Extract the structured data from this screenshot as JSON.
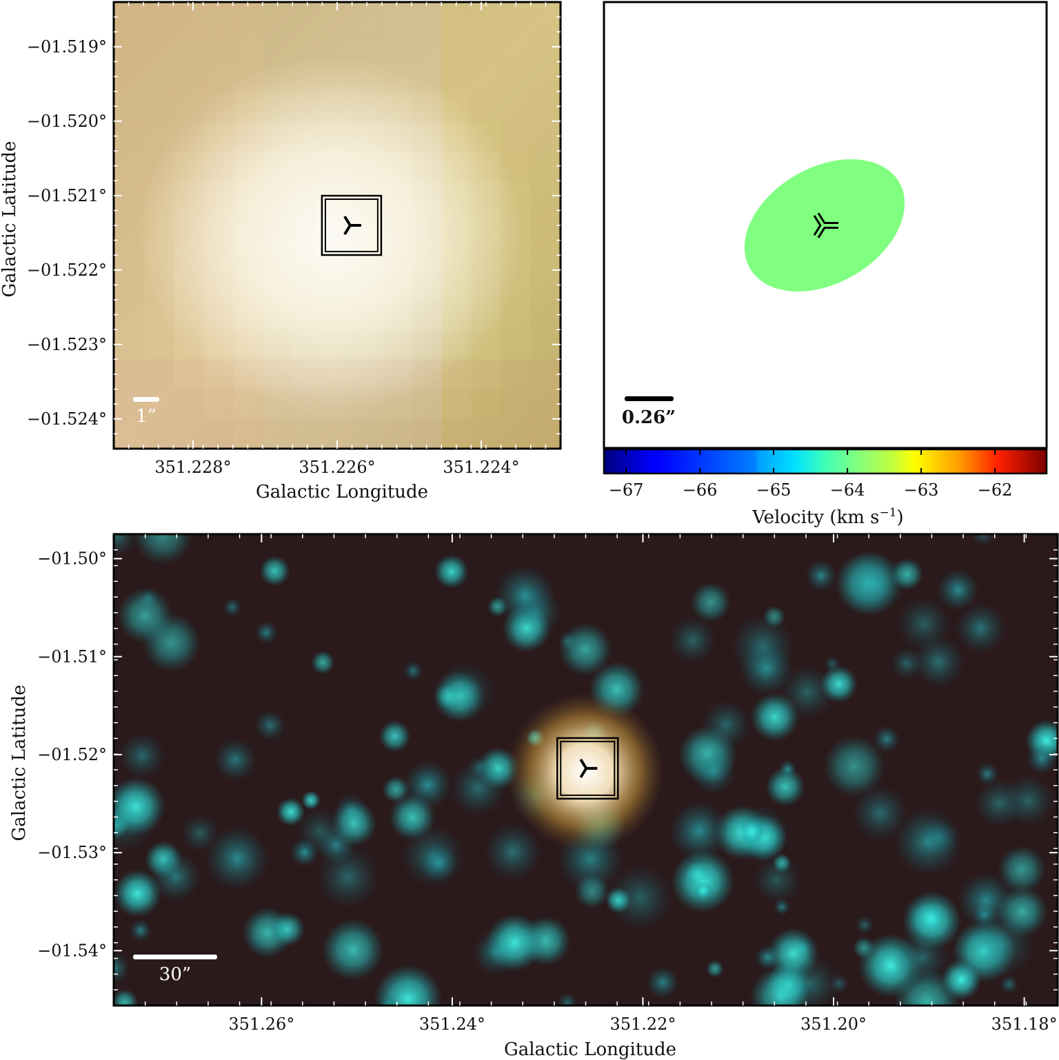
{
  "chart_data": [
    {
      "type": "heatmap",
      "panel": "top-left",
      "description_kind": "false-color image",
      "xlabel": "Galactic Longitude",
      "ylabel": "Galactic Latitude",
      "xlim": [
        351.2291,
        351.2229
      ],
      "ylim": [
        -1.5244,
        -1.5184
      ],
      "x_ticks": [
        351.228,
        351.226,
        351.224
      ],
      "x_tick_labels": [
        "351.228°",
        "351.226°",
        "351.224°"
      ],
      "y_ticks": [
        -1.519,
        -1.52,
        -1.521,
        -1.522,
        -1.523,
        -1.524
      ],
      "y_tick_labels": [
        "−01.519°",
        "−01.520°",
        "−01.521°",
        "−01.522°",
        "−01.523°",
        "−01.524°"
      ],
      "scale_bar_label": "1”",
      "marker": {
        "x": 351.2258,
        "y": -1.5214,
        "symbol": "tri-left-in-double-square"
      }
    },
    {
      "type": "scatter",
      "panel": "top-right",
      "description_kind": "velocity map",
      "xlim": [
        0,
        1
      ],
      "ylim": [
        0,
        1
      ],
      "ellipse": {
        "cx": 0.5,
        "cy": 0.5,
        "velocity": -64.3,
        "color": "#80ff80"
      },
      "scale_bar_label": "0.26”",
      "colorbar": {
        "label": "Velocity (km s",
        "label_sup": "−1",
        "label_end": ")",
        "range": [
          -67.3,
          -61.3
        ],
        "ticks": [
          -67,
          -66,
          -65,
          -64,
          -63,
          -62
        ],
        "tick_labels": [
          "−67",
          "−66",
          "−65",
          "−64",
          "−63",
          "−62"
        ],
        "colormap": "jet"
      }
    },
    {
      "type": "heatmap",
      "panel": "bottom",
      "description_kind": "false-color image",
      "xlabel": "Galactic Longitude",
      "ylabel": "Galactic Latitude",
      "xlim": [
        351.2755,
        351.1765
      ],
      "ylim": [
        -1.5456,
        -1.4975
      ],
      "x_ticks": [
        351.26,
        351.24,
        351.22,
        351.2,
        351.18
      ],
      "x_tick_labels": [
        "351.26°",
        "351.24°",
        "351.22°",
        "351.20°",
        "351.18°"
      ],
      "y_ticks": [
        -1.5,
        -1.51,
        -1.52,
        -1.53,
        -1.54
      ],
      "y_tick_labels": [
        "−01.50°",
        "−01.51°",
        "−01.52°",
        "−01.53°",
        "−01.54°"
      ],
      "scale_bar_label": "30”",
      "marker": {
        "x": 351.2258,
        "y": -1.5214,
        "symbol": "tri-left-in-double-square"
      }
    }
  ]
}
